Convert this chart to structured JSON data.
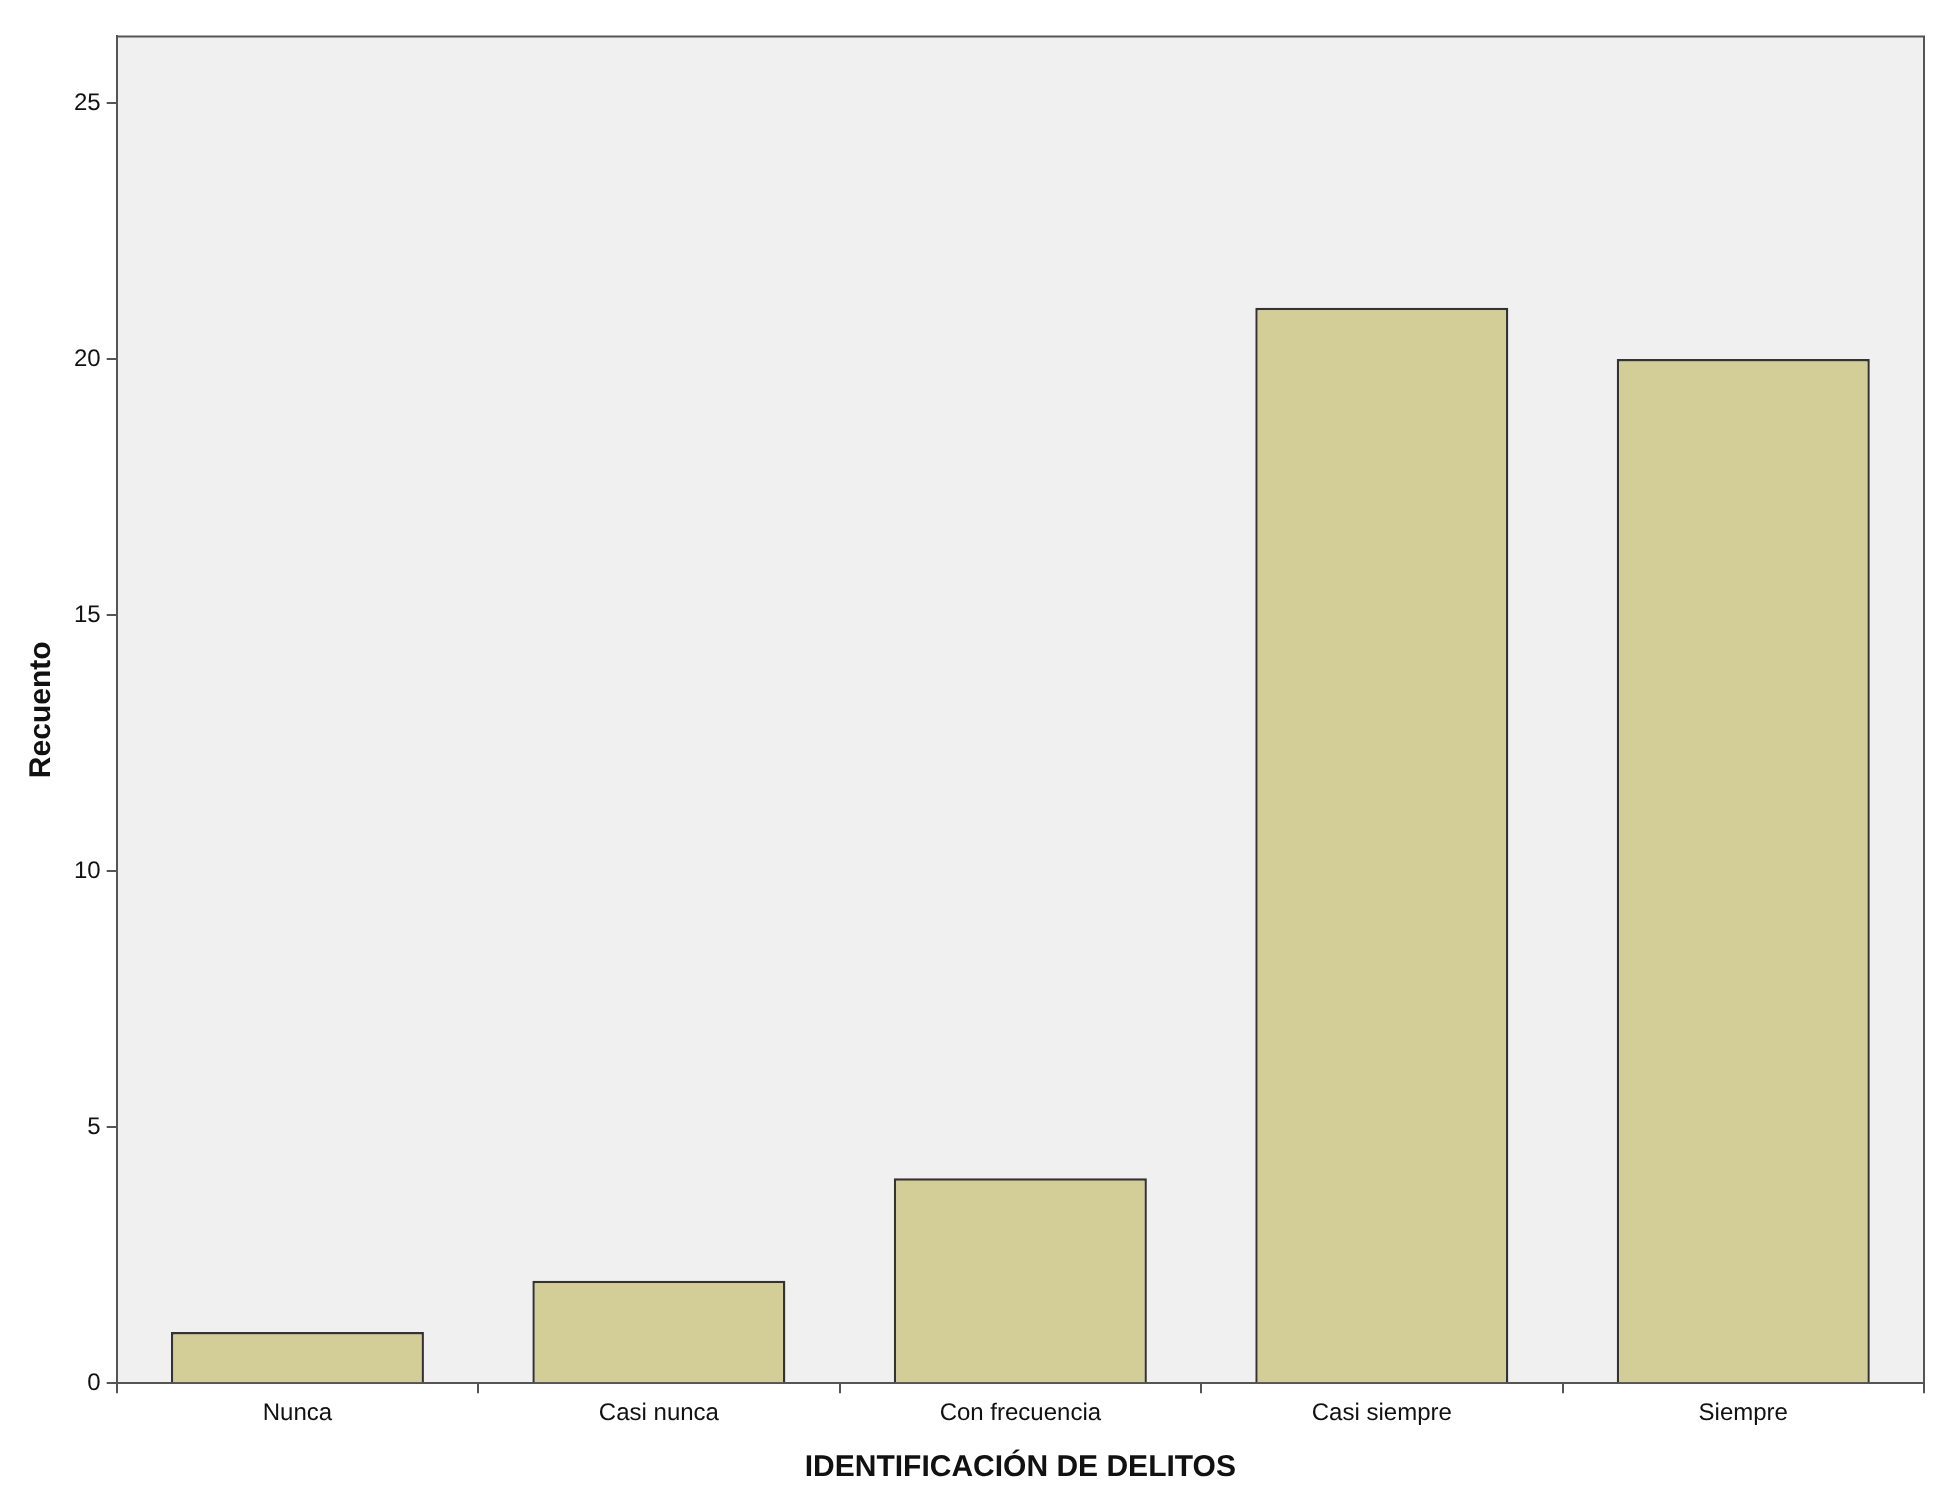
{
  "chart_data": {
    "type": "bar",
    "xlabel": "IDENTIFICACIÓN DE DELITOS",
    "ylabel": "Recuento",
    "categories": [
      "Nunca",
      "Casi nunca",
      "Con frecuencia",
      "Casi siempre",
      "Siempre"
    ],
    "values": [
      1,
      2,
      4,
      21,
      20
    ],
    "color": "#d3ce97",
    "ylim": [
      0,
      26.3
    ],
    "yticks": [
      0,
      5,
      10,
      15,
      20,
      25
    ],
    "grid": false,
    "legend": false
  }
}
